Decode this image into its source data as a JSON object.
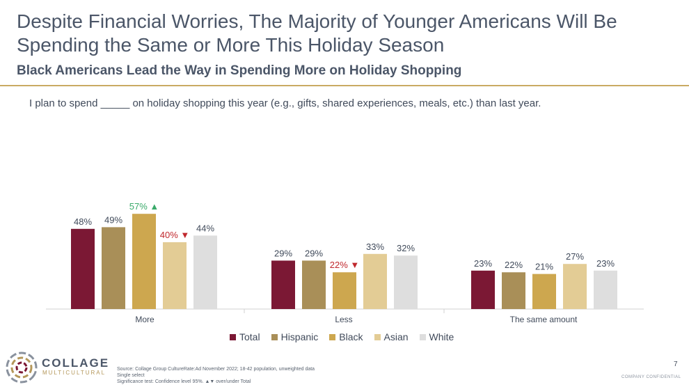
{
  "title": "Despite Financial Worries, The Majority of Younger Americans Will Be Spending the Same or More This Holiday Season",
  "subtitle": "Black Americans Lead the Way in Spending More on Holiday Shopping",
  "question": "I plan to spend _____ on holiday shopping this year (e.g., gifts, shared experiences, meals, etc.) than last year.",
  "colors": {
    "Total": "#7b1834",
    "Hispanic": "#a98f58",
    "Black": "#cda74f",
    "Asian": "#e3cc95",
    "White": "#dedede",
    "sig_up": "#3aaa6a",
    "sig_down": "#c0282d"
  },
  "chart_data": {
    "type": "bar",
    "categories": [
      "More",
      "Less",
      "The same amount"
    ],
    "series": [
      {
        "name": "Total",
        "values": [
          48,
          29,
          23
        ]
      },
      {
        "name": "Hispanic",
        "values": [
          49,
          29,
          22
        ]
      },
      {
        "name": "Black",
        "values": [
          57,
          22,
          21
        ]
      },
      {
        "name": "Asian",
        "values": [
          40,
          33,
          27
        ]
      },
      {
        "name": "White",
        "values": [
          44,
          32,
          23
        ]
      }
    ],
    "value_suffix": "%",
    "significance": [
      {
        "series": "Black",
        "category": "More",
        "direction": "up"
      },
      {
        "series": "Asian",
        "category": "More",
        "direction": "down"
      },
      {
        "series": "Black",
        "category": "Less",
        "direction": "down"
      }
    ],
    "ylim": [
      0,
      60
    ],
    "legend_position": "bottom",
    "grid": false
  },
  "legend": [
    "Total",
    "Hispanic",
    "Black",
    "Asian",
    "White"
  ],
  "logo": {
    "brand": "COLLAGE",
    "brand_sub": "MULTICULTURAL",
    "icon": "collage-logo-icon"
  },
  "footnotes": [
    "Source: Collage Group CultureRate:Ad November 2022; 18-42 population, unweighted data",
    "Single select",
    "Significance test: Confidence level 95%. ▲▼ over/under Total"
  ],
  "page_number": "7",
  "confidential": "COMPANY CONFIDENTIAL"
}
